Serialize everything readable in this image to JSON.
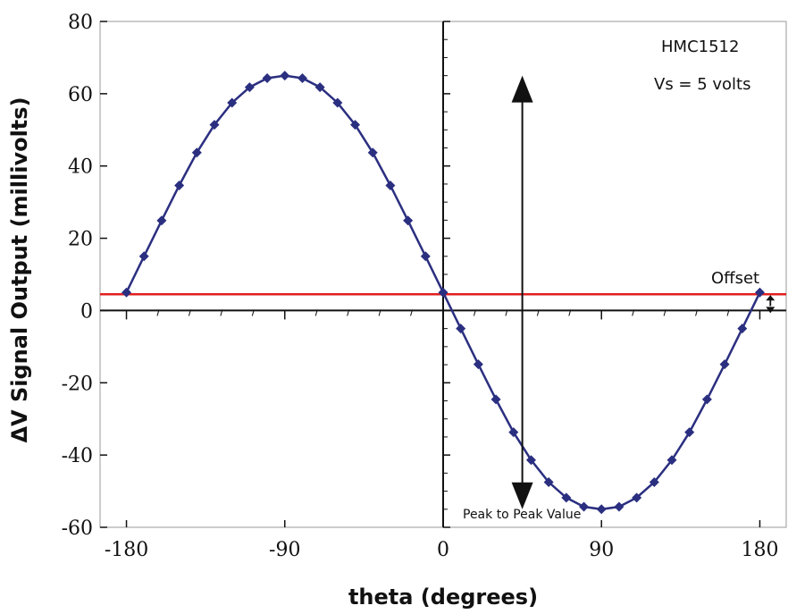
{
  "chart_data": {
    "type": "line",
    "title": "",
    "xlabel": "theta (degrees)",
    "ylabel": "ΔV Signal Output (millivolts)",
    "xlim": [
      -195,
      195
    ],
    "ylim": [
      -60,
      80
    ],
    "x_ticks": [
      -180,
      -90,
      0,
      90,
      180
    ],
    "y_ticks": [
      -60,
      -40,
      -20,
      0,
      20,
      40,
      60,
      80
    ],
    "grid": false,
    "legend": "none",
    "series": [
      {
        "name": "",
        "color": "#2b2f80",
        "marker": "diamond",
        "x": [
          -180,
          -170,
          -160,
          -150,
          -140,
          -130,
          -120,
          -110,
          -100,
          -90,
          -80,
          -70,
          -60,
          -50,
          -40,
          -30,
          -20,
          -10,
          0,
          10,
          20,
          30,
          40,
          50,
          60,
          70,
          80,
          90,
          100,
          110,
          120,
          130,
          140,
          150,
          160,
          170,
          180
        ],
        "values": [
          5,
          15,
          24.9,
          34.6,
          43.7,
          51.4,
          57.5,
          61.8,
          64.3,
          65,
          64.3,
          61.8,
          57.5,
          51.4,
          43.7,
          34.6,
          24.9,
          15,
          5,
          -5,
          -14.9,
          -24.6,
          -33.7,
          -41.4,
          -47.5,
          -51.8,
          -54.3,
          -55,
          -54.3,
          -51.8,
          -47.5,
          -41.4,
          -33.7,
          -24.6,
          -14.9,
          -5,
          5
        ]
      }
    ],
    "offset_line": {
      "value": 4.5,
      "color": "#e02020"
    },
    "annotations": {
      "device": "HMC1512",
      "supply": "Vs = 5 volts",
      "offset": "Offset",
      "peak_to_peak": "Peak to Peak Value"
    }
  }
}
